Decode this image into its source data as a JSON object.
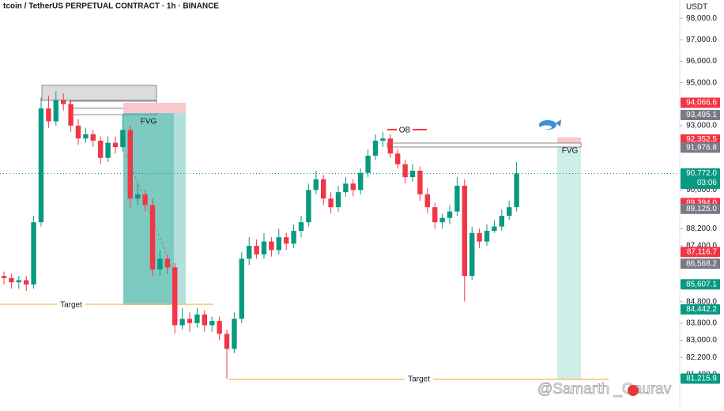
{
  "chart_data": {
    "type": "candlestick",
    "title": "tcoin / TetherUS PERPETUAL CONTRACT · 1h · BINANCE",
    "unit": "USDT",
    "up_color": "#089981",
    "down_color": "#f23645",
    "ylim": [
      79890,
      98853
    ],
    "yticks": [
      {
        "value": 98000,
        "label": "98,000.0"
      },
      {
        "value": 97000,
        "label": "97,000.0"
      },
      {
        "value": 96000,
        "label": "96,000.0"
      },
      {
        "value": 95000,
        "label": "95,000.0"
      },
      {
        "value": 93000,
        "label": "93,000.0"
      },
      {
        "value": 90000,
        "label": "90,000.0"
      },
      {
        "value": 88200,
        "label": "88,200.0"
      },
      {
        "value": 87400,
        "label": "87,400.0"
      },
      {
        "value": 84800,
        "label": "84,800.0"
      },
      {
        "value": 83800,
        "label": "83,800.0"
      },
      {
        "value": 83000,
        "label": "83,000.0"
      },
      {
        "value": 82200,
        "label": "82,200.0"
      },
      {
        "value": 81400,
        "label": "81,400.0"
      }
    ],
    "price_labels": [
      {
        "value": 94066.6,
        "label": "94,066.6",
        "color": "#f23645"
      },
      {
        "value": 93495.1,
        "label": "93,495.1",
        "color": "#787b86"
      },
      {
        "value": 92352.5,
        "label": "92,352.5",
        "color": "#f23645"
      },
      {
        "value": 91976.8,
        "label": "91,976.8",
        "color": "#787b86"
      },
      {
        "value": 90772.0,
        "label": "90,772.0",
        "color": "#089981"
      },
      {
        "value": 89394.0,
        "label": "89,394.0",
        "color": "#f23645"
      },
      {
        "value": 89125.0,
        "label": "89,125.0",
        "color": "#787b86"
      },
      {
        "value": 87116.7,
        "label": "87,116.7",
        "color": "#f23645"
      },
      {
        "value": 86568.2,
        "label": "86,568.2",
        "color": "#787b86"
      },
      {
        "value": 85607.1,
        "label": "85,607.1",
        "color": "#089981"
      },
      {
        "value": 84442.2,
        "label": "84,442.2",
        "color": "#089981"
      },
      {
        "value": 81215.9,
        "label": "81,215.9",
        "color": "#089981"
      }
    ],
    "countdown": "03:06",
    "annotations": {
      "fvg_left": "FVG",
      "fvg_right": "FVG",
      "ob": "OB",
      "target_left": "Target",
      "target_right": "Target"
    },
    "watermark": "@Samarth _Gaurav",
    "open": [
      86000,
      85900,
      85700,
      85800,
      85600,
      88500,
      93800,
      93200,
      94200,
      94000,
      93000,
      92400,
      92600,
      92300,
      91500,
      92200,
      92000,
      92800,
      89600,
      89800,
      89300,
      86300,
      86800,
      86400,
      83700,
      84000,
      83800,
      84200,
      83700,
      83900,
      83300,
      82600,
      84000,
      86800,
      87400,
      87000,
      87600,
      87200,
      87800,
      87500,
      88100,
      88500,
      90000,
      90500,
      89600,
      89200,
      89900,
      90300,
      90000,
      90800,
      91600,
      92300,
      92400,
      91700,
      91200,
      90600,
      90900,
      89800,
      89200,
      88500,
      88700,
      89000,
      90200,
      86000,
      88000,
      87600,
      88100,
      88300,
      88800,
      89200
    ],
    "high": [
      86200,
      86100,
      86000,
      86000,
      88800,
      94300,
      94400,
      94600,
      94500,
      94200,
      93300,
      92900,
      92800,
      92500,
      92500,
      92500,
      93500,
      93000,
      90300,
      90000,
      89600,
      87200,
      87000,
      86600,
      84500,
      84300,
      84500,
      84400,
      84100,
      84100,
      83500,
      84300,
      87100,
      87800,
      87700,
      88000,
      87800,
      88200,
      88000,
      88400,
      88800,
      90300,
      90900,
      90700,
      89900,
      90200,
      90600,
      90500,
      91000,
      91900,
      92600,
      92700,
      92600,
      91900,
      91400,
      91200,
      91100,
      90100,
      89400,
      88900,
      89300,
      90600,
      90500,
      88300,
      88200,
      88400,
      88600,
      89100,
      89500,
      91300
    ],
    "low": [
      85600,
      85400,
      85400,
      85300,
      85400,
      88300,
      92900,
      93000,
      93700,
      92700,
      92100,
      92200,
      92000,
      91200,
      91300,
      91700,
      91800,
      89200,
      89300,
      89000,
      86000,
      86000,
      86100,
      83300,
      83500,
      83400,
      83600,
      83400,
      83400,
      83000,
      81200,
      82400,
      83800,
      86500,
      86800,
      86800,
      86900,
      87000,
      87200,
      87300,
      87800,
      88300,
      89800,
      89300,
      88900,
      89000,
      89700,
      89700,
      89800,
      90600,
      91400,
      92000,
      91500,
      91000,
      90300,
      90400,
      89500,
      88900,
      88200,
      88200,
      88400,
      88800,
      84800,
      85800,
      87300,
      87400,
      88000,
      88100,
      88600,
      89000
    ],
    "close": [
      85900,
      85700,
      85800,
      85600,
      88500,
      93800,
      93200,
      94200,
      94000,
      93000,
      92400,
      92600,
      92300,
      91500,
      92200,
      92000,
      92800,
      89600,
      89800,
      89300,
      86300,
      86800,
      86400,
      83700,
      84000,
      83800,
      84200,
      83700,
      83900,
      83300,
      82600,
      84000,
      86800,
      87400,
      87000,
      87600,
      87200,
      87800,
      87500,
      88100,
      88500,
      90000,
      90500,
      89600,
      89200,
      89900,
      90300,
      90000,
      90800,
      91600,
      92300,
      92400,
      91700,
      91200,
      90600,
      90900,
      89800,
      89200,
      88500,
      88700,
      89000,
      90200,
      86000,
      88000,
      87600,
      88100,
      88300,
      88800,
      89200,
      90772
    ]
  }
}
